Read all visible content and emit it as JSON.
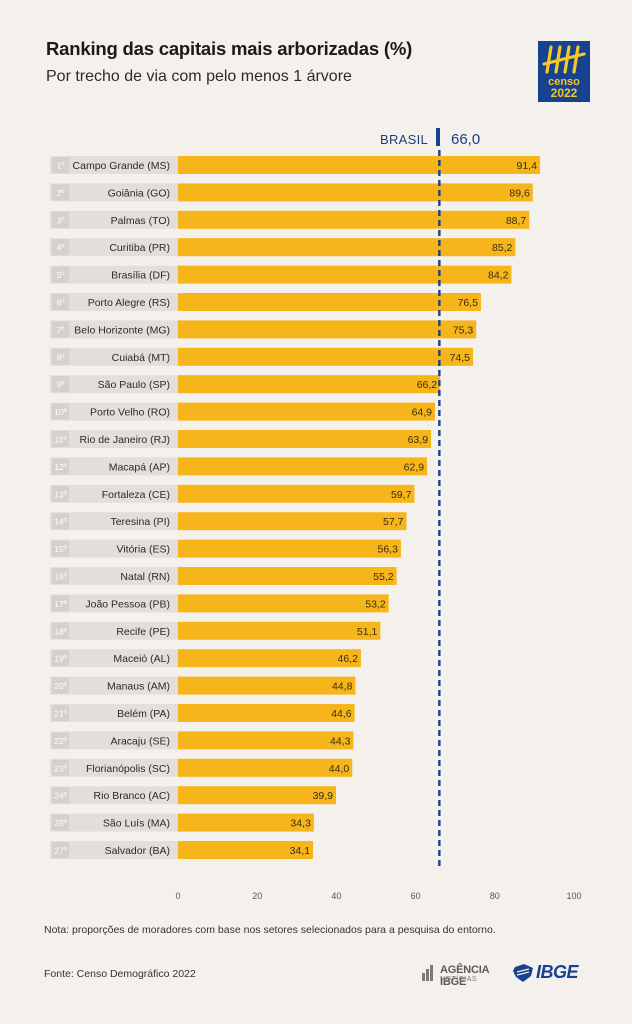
{
  "header": {
    "title": "Ranking das capitais mais arborizadas (%)",
    "subtitle": "Por trecho de via com pelo menos 1 árvore",
    "logo_word1": "censo",
    "logo_word2": "2022"
  },
  "reference": {
    "label": "BRASIL",
    "value_label": "66,0",
    "value": 66.0,
    "color": "#16428f"
  },
  "colors": {
    "bar": "#f6b51b",
    "rank_box": "#e2dfda",
    "rank_text": "#ffffff",
    "background": "#f4f1ec"
  },
  "chart_data": {
    "type": "bar",
    "orientation": "horizontal",
    "xlim": [
      0,
      100
    ],
    "xticks": [
      "0",
      "20",
      "40",
      "60",
      "80",
      "100"
    ],
    "reference_line": 66.0,
    "ranks": [
      "1º",
      "2º",
      "3º",
      "4º",
      "5º",
      "6º",
      "7º",
      "8º",
      "9º",
      "10º",
      "11º",
      "12º",
      "13º",
      "14º",
      "15º",
      "16º",
      "17º",
      "18º",
      "19º",
      "20º",
      "21º",
      "22º",
      "23º",
      "24º",
      "25º",
      "27º"
    ],
    "categories": [
      "Campo Grande (MS)",
      "Goiânia (GO)",
      "Palmas (TO)",
      "Curitiba (PR)",
      "Brasília (DF)",
      "Porto Alegre (RS)",
      "Belo Horizonte (MG)",
      "Cuiabá (MT)",
      "São Paulo (SP)",
      "Porto Velho (RO)",
      "Rio de Janeiro (RJ)",
      "Macapá (AP)",
      "Fortaleza (CE)",
      "Teresina (PI)",
      "Vitória (ES)",
      "Natal (RN)",
      "João Pessoa (PB)",
      "Recife (PE)",
      "Maceió (AL)",
      "Manaus (AM)",
      "Belém (PA)",
      "Aracaju (SE)",
      "Florianópolis (SC)",
      "Rio Branco (AC)",
      "São Luís (MA)",
      "Salvador (BA)"
    ],
    "values": [
      91.4,
      89.6,
      88.7,
      85.2,
      84.2,
      76.5,
      75.3,
      74.5,
      66.2,
      64.9,
      63.9,
      62.9,
      59.7,
      57.7,
      56.3,
      55.2,
      53.2,
      51.1,
      46.2,
      44.8,
      44.6,
      44.3,
      44.0,
      39.9,
      34.3,
      34.1
    ],
    "value_labels": [
      "91,4",
      "89,6",
      "88,7",
      "85,2",
      "84,2",
      "76,5",
      "75,3",
      "74,5",
      "66,2",
      "64,9",
      "63,9",
      "62,9",
      "59,7",
      "57,7",
      "56,3",
      "55,2",
      "53,2",
      "51,1",
      "46,2",
      "44,8",
      "44,6",
      "44,3",
      "44,0",
      "39,9",
      "34,3",
      "34,1"
    ]
  },
  "footer": {
    "note": "Nota: proporções de moradores com base nos setores selecionados para a pesquisa do entorno.",
    "source": "Fonte: Censo Demográfico 2022",
    "agencia": "AGÊNCIA IBGE",
    "agencia_sub": "NOTÍCIAS",
    "ibge": "IBGE"
  }
}
